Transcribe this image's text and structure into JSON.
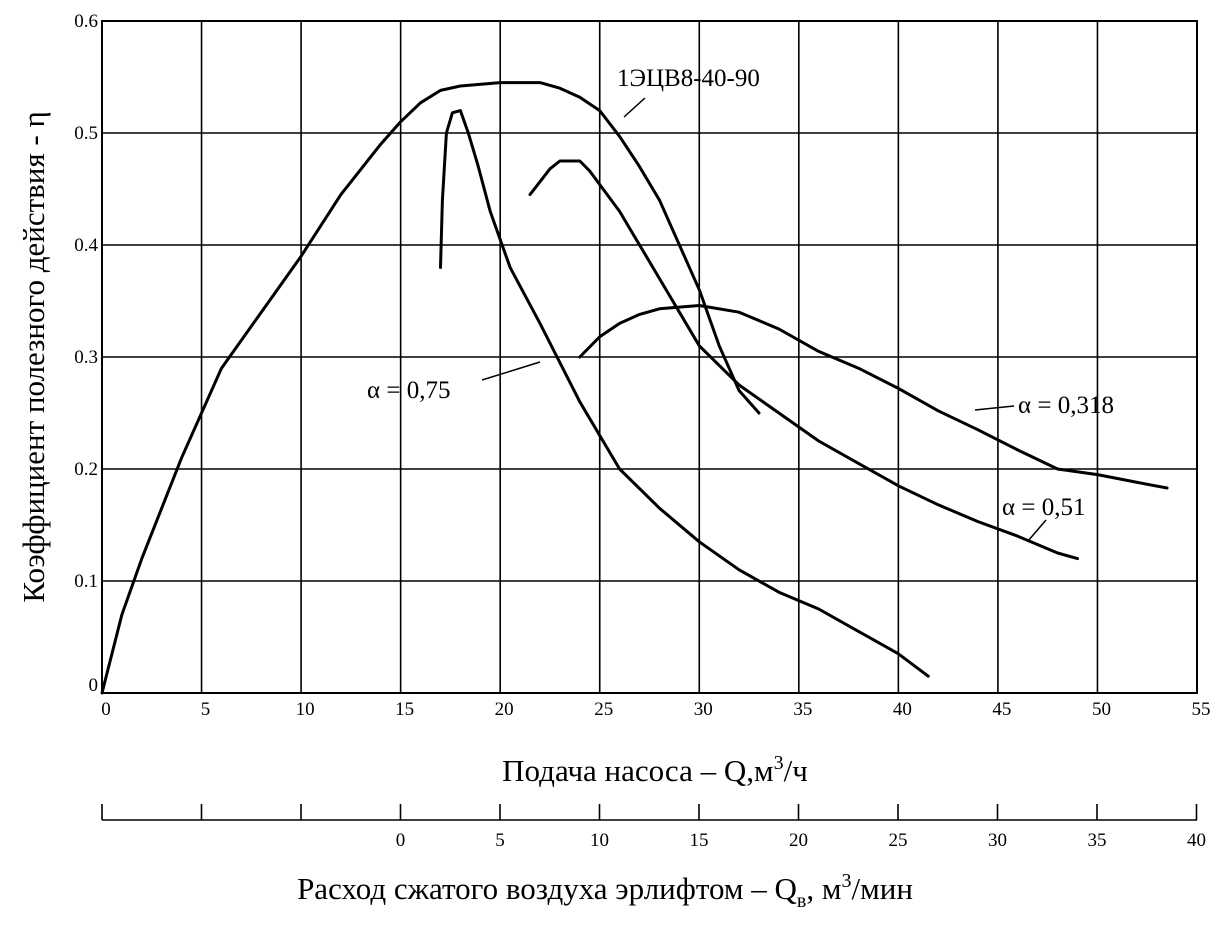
{
  "chart_data": {
    "type": "line",
    "title": "",
    "xlabel_prefix": "Подача насоса – Q,м",
    "xlabel_sup": "3",
    "xlabel_suffix": "/ч",
    "ylabel": "Коэффициент полезного действия - η",
    "xlim": [
      0,
      55
    ],
    "ylim": [
      0,
      0.6
    ],
    "grid": true,
    "x_ticks": [
      "0",
      "5",
      "10",
      "15",
      "20",
      "25",
      "30",
      "35",
      "40",
      "45",
      "50",
      "55"
    ],
    "y_ticks": [
      "0",
      "0.1",
      "0.2",
      "0.3",
      "0.4",
      "0.5",
      "0.6"
    ],
    "secondary_axis": {
      "label_prefix": "Расход сжатого воздуха эрлифтом – Q",
      "label_sub": "в",
      "label_mid": ", м",
      "label_sup": "3",
      "label_suffix": "/мин",
      "tick_labels": [
        "0",
        "5",
        "10",
        "15",
        "20",
        "25",
        "30",
        "35",
        "40"
      ],
      "unlabeled_ticks_left": 3
    },
    "series": [
      {
        "name": "1ЭЦВ8-40-90",
        "x": [
          0,
          1,
          2,
          4,
          6,
          8,
          10,
          12,
          14,
          15,
          16,
          17,
          18,
          20,
          22,
          23,
          24,
          25,
          26,
          27,
          28,
          29,
          30,
          31,
          32,
          33
        ],
        "y": [
          0,
          0.07,
          0.12,
          0.21,
          0.29,
          0.34,
          0.39,
          0.445,
          0.49,
          0.51,
          0.527,
          0.538,
          0.542,
          0.545,
          0.545,
          0.54,
          0.532,
          0.52,
          0.497,
          0.47,
          0.44,
          0.4,
          0.36,
          0.31,
          0.27,
          0.25
        ]
      },
      {
        "name": "α = 0,75",
        "x": [
          17,
          17.1,
          17.3,
          17.6,
          18,
          18.4,
          18.9,
          19.5,
          20.5,
          22,
          24,
          26,
          28,
          30,
          32,
          34,
          36,
          38,
          40,
          41.5
        ],
        "y": [
          0.38,
          0.44,
          0.5,
          0.518,
          0.52,
          0.5,
          0.47,
          0.43,
          0.38,
          0.33,
          0.26,
          0.2,
          0.165,
          0.135,
          0.11,
          0.09,
          0.075,
          0.055,
          0.035,
          0.015
        ]
      },
      {
        "name": "α = 0,51",
        "x": [
          21.5,
          22.5,
          23,
          24,
          24.5,
          26,
          28,
          30,
          32,
          34,
          36,
          38,
          40,
          42,
          44,
          46,
          48,
          49
        ],
        "y": [
          0.445,
          0.468,
          0.475,
          0.475,
          0.466,
          0.43,
          0.37,
          0.31,
          0.275,
          0.25,
          0.225,
          0.205,
          0.185,
          0.168,
          0.153,
          0.14,
          0.125,
          0.12
        ]
      },
      {
        "name": "α = 0,318",
        "x": [
          24,
          25,
          26,
          27,
          28,
          30,
          32,
          34,
          36,
          38,
          40,
          42,
          44,
          46,
          48,
          50,
          52,
          53.5
        ],
        "y": [
          0.3,
          0.318,
          0.33,
          0.338,
          0.343,
          0.346,
          0.34,
          0.325,
          0.305,
          0.29,
          0.272,
          0.252,
          0.235,
          0.217,
          0.2,
          0.195,
          0.188,
          0.183
        ]
      }
    ],
    "annotations": [
      {
        "text": "1ЭЦВ8-40-90",
        "series": 0
      },
      {
        "text": "α = 0,75",
        "series": 1
      },
      {
        "text": "α = 0,51",
        "series": 2
      },
      {
        "text": "α = 0,318",
        "series": 3
      }
    ]
  }
}
